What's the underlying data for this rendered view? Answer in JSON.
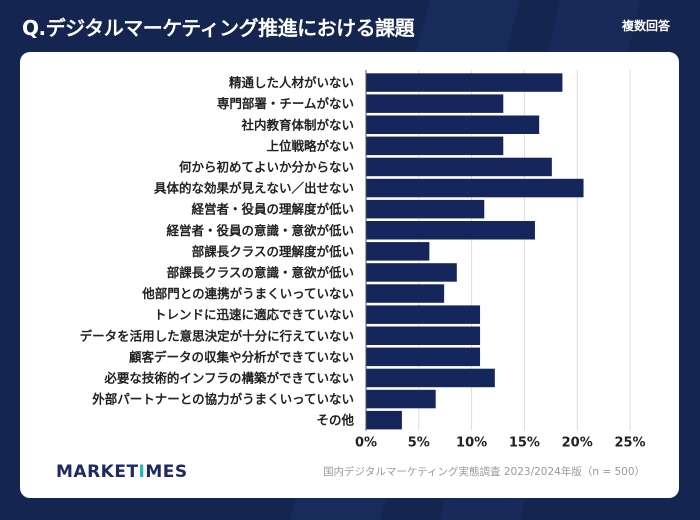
{
  "header": {
    "title": "Q.デジタルマーケティング推進における課題",
    "badge": "複数回答"
  },
  "footer": {
    "logo_prefix": "MARKET",
    "logo_accent": "I",
    "logo_suffix": "MES",
    "source": "国内デジタルマーケティング実態調査 2023/2024年版（n = 500）"
  },
  "colors": {
    "background": "#14254f",
    "bar": "#15265c",
    "grid": "#dddddd",
    "logo": "#1d2a63",
    "logo_accent": "#2bb3c0"
  },
  "chart_data": {
    "type": "bar",
    "orientation": "horizontal",
    "categories": [
      "精通した人材がいない",
      "専門部署・チームがない",
      "社内教育体制がない",
      "上位戦略がない",
      "何から初めてよいか分からない",
      "具体的な効果が見えない／出せない",
      "経営者・役員の理解度が低い",
      "経営者・役員の意識・意欲が低い",
      "部課長クラスの理解度が低い",
      "部課長クラスの意識・意欲が低い",
      "他部門との連携がうまくいっていない",
      "トレンドに迅速に適応できていない",
      "データを活用した意思決定が十分に行えていない",
      "顧客データの収集や分析ができていない",
      "必要な技術的インフラの構築ができていない",
      "外部パートナーとの協力がうまくいっていない",
      "その他"
    ],
    "values": [
      18.6,
      13.0,
      16.4,
      13.0,
      17.6,
      20.6,
      11.2,
      16.0,
      6.0,
      8.6,
      7.4,
      10.8,
      10.8,
      10.8,
      12.2,
      6.6,
      3.4
    ],
    "xlim": [
      0,
      25
    ],
    "ticks": [
      "0%",
      "5%",
      "10%",
      "15%",
      "20%",
      "25%"
    ],
    "grid": true
  }
}
